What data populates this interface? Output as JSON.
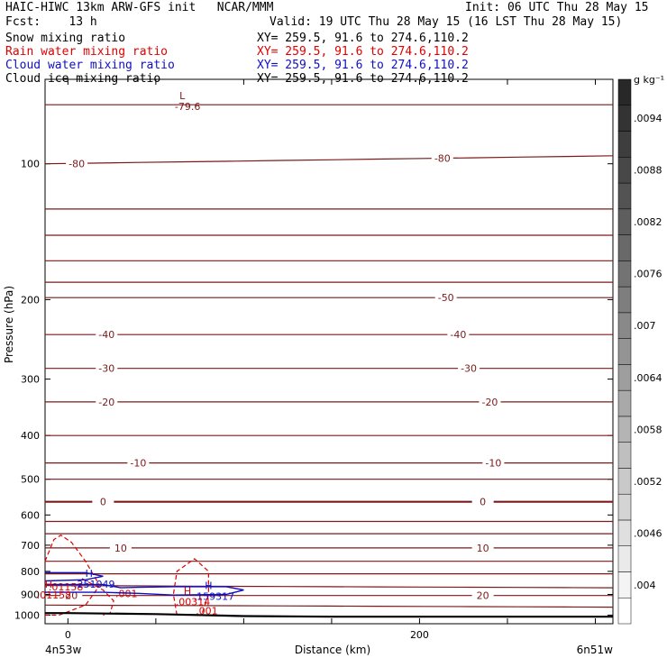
{
  "header": {
    "title_left": "HAIC-HIWC 13km ARW-GFS init   NCAR/MMM",
    "init": "Init: 06 UTC Thu 28 May 15",
    "fcst": "Fcst:    13 h",
    "valid": "Valid: 19 UTC Thu 28 May 15 (16 LST Thu 28 May 15)"
  },
  "fields": [
    {
      "name": "Snow mixing ratio",
      "xy": "XY= 259.5, 91.6 to 274.6,110.2",
      "color": "#000000"
    },
    {
      "name": "Rain water mixing ratio",
      "xy": "XY= 259.5, 91.6 to 274.6,110.2",
      "color": "#e00000"
    },
    {
      "name": "Cloud water mixing ratio",
      "xy": "XY= 259.5, 91.6 to 274.6,110.2",
      "color": "#1010c0"
    },
    {
      "name": "Cloud ice mixing ratio",
      "xy": "XY= 259.5, 91.6 to 274.6,110.2",
      "color": "#000000"
    }
  ],
  "colors": {
    "temperature": "#7a1a1a",
    "rain": "#e00000",
    "cloud_water": "#1010c0",
    "terrain": "#000000"
  },
  "chart_data": {
    "type": "line",
    "ylabel": "Pressure (hPa)",
    "xlabel": "Distance (km)",
    "xlim": [
      -13,
      310
    ],
    "ylim": [
      1045,
      65
    ],
    "y_scale": "log",
    "y_ticks": [
      100,
      200,
      300,
      400,
      500,
      600,
      700,
      800,
      900,
      1000
    ],
    "x_ticks": [
      0,
      200
    ],
    "x_minor_ticks": [
      50,
      100,
      150,
      250,
      300
    ],
    "x_endpoints": [
      "4n53w",
      "6n51w"
    ],
    "colorbar": {
      "unit": "g kg⁻¹",
      "labels": [
        ".004",
        ".0046",
        ".0052",
        ".0058",
        ".0064",
        ".007",
        ".0076",
        ".0082",
        ".0088",
        ".0094"
      ]
    },
    "temperature_contours": [
      {
        "y": [
          74,
          74
        ],
        "label": null
      },
      {
        "y": [
          100,
          96
        ],
        "label": "-80"
      },
      {
        "y": [
          126,
          126
        ],
        "label": null
      },
      {
        "y": [
          144,
          144
        ],
        "label": null
      },
      {
        "y": [
          164,
          164
        ],
        "label": null
      },
      {
        "y": [
          183,
          183
        ],
        "label": null
      },
      {
        "y": [
          198,
          198
        ],
        "label": "-50"
      },
      {
        "y": [
          239,
          239
        ],
        "label": "-40"
      },
      {
        "y": [
          284,
          284
        ],
        "label": "-30"
      },
      {
        "y": [
          337,
          337
        ],
        "label": "-20"
      },
      {
        "y": [
          400,
          400
        ],
        "label": null
      },
      {
        "y": [
          460,
          460
        ],
        "label": "-10"
      },
      {
        "y": [
          500,
          500
        ],
        "label": null
      },
      {
        "y": [
          561,
          561
        ],
        "label": "0",
        "bold": true
      },
      {
        "y": [
          620,
          620
        ],
        "label": null
      },
      {
        "y": [
          660,
          660
        ],
        "label": null
      },
      {
        "y": [
          710,
          710
        ],
        "label": "10"
      },
      {
        "y": [
          760,
          760
        ],
        "label": null
      },
      {
        "y": [
          810,
          810
        ],
        "label": null
      },
      {
        "y": [
          860,
          870
        ],
        "label": null
      },
      {
        "y": [
          905,
          905
        ],
        "label": "20"
      },
      {
        "y": [
          950,
          960
        ],
        "label": null
      }
    ],
    "terrain": {
      "x": [
        -13,
        0,
        50,
        100,
        150,
        200,
        250,
        310
      ],
      "p": [
        990,
        990,
        995,
        1005,
        1008,
        1008,
        1008,
        1008
      ]
    },
    "rain_contours": [
      {
        "label": ".01158"
      },
      {
        "label": ".001"
      },
      {
        "label": ".00314"
      },
      {
        "label": ".001"
      }
    ],
    "cloud_water_contours": [
      {
        "label": ".251049"
      },
      {
        "label": ".159317"
      }
    ],
    "extrema": [
      {
        "marker": "L",
        "value": "-79.6",
        "x": 65,
        "p": 72,
        "color": "#7a1a1a"
      },
      {
        "marker": "H",
        "value": ".251049",
        "x": 12,
        "p": 822,
        "color": "#1010c0"
      },
      {
        "marker": "H",
        "value": ".159317",
        "x": 80,
        "p": 875,
        "color": "#1010c0"
      },
      {
        "marker": "H",
        "value": ".00314",
        "x": 68,
        "p": 900,
        "color": "#e00000"
      },
      {
        "marker": "H",
        "value": ".01158",
        "x": -11,
        "p": 870,
        "color": "#e00000"
      }
    ],
    "other_labels": [
      {
        "text": "-40",
        "x": 22
      },
      {
        "text": "-30",
        "x": 22
      },
      {
        "text": "-20",
        "x": 22
      },
      {
        "text": "-10",
        "x": 40
      },
      {
        "text": "0",
        "x": 20
      },
      {
        "text": "10",
        "x": 30
      },
      {
        "text": "20",
        "x": 2
      },
      {
        "text": "-80",
        "x": 5
      }
    ]
  }
}
